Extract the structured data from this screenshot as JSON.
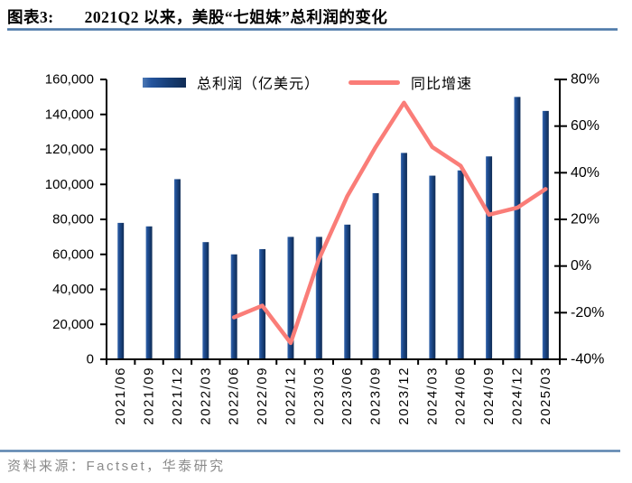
{
  "header": {
    "tag": "图表3:",
    "title": "2021Q2 以来，美股“七姐妹”总利润的变化"
  },
  "chart_data": {
    "type": "bar+line",
    "title": "2021Q2 以来，美股“七姐妹”总利润的变化",
    "categories": [
      "2021/06",
      "2021/09",
      "2021/12",
      "2022/03",
      "2022/06",
      "2022/09",
      "2022/12",
      "2023/03",
      "2023/06",
      "2023/09",
      "2023/12",
      "2024/03",
      "2024/06",
      "2024/09",
      "2024/12",
      "2025/03"
    ],
    "series": [
      {
        "name": "总利润（亿美元）",
        "type": "bar",
        "axis": "left",
        "color": "#17417e",
        "values": [
          78000,
          76000,
          103000,
          67000,
          60000,
          63000,
          70000,
          70000,
          77000,
          95000,
          118000,
          105000,
          108000,
          116000,
          150000,
          142000
        ]
      },
      {
        "name": "同比增速",
        "type": "line",
        "axis": "right",
        "color": "#fa7d78",
        "values": [
          null,
          null,
          null,
          null,
          -22,
          -17,
          -33,
          3,
          30,
          51,
          70,
          51,
          43,
          22,
          25,
          33
        ]
      }
    ],
    "left_axis": {
      "min": 0,
      "max": 160000,
      "step": 20000,
      "tick_labels": [
        "0",
        "20,000",
        "40,000",
        "60,000",
        "80,000",
        "100,000",
        "120,000",
        "140,000",
        "160,000"
      ]
    },
    "right_axis": {
      "min": -40,
      "max": 80,
      "step": 20,
      "tick_labels": [
        "-40%",
        "-20%",
        "0%",
        "20%",
        "40%",
        "60%",
        "80%"
      ]
    },
    "legend_position": "top",
    "grid": false
  },
  "footer": {
    "source": "资料来源：Factset，华泰研究"
  },
  "colors": {
    "bar": "#17417e",
    "line": "#fa7d78",
    "rule": "#4e79a8",
    "axis": "#000000",
    "footer_text": "#8a8a8a"
  }
}
